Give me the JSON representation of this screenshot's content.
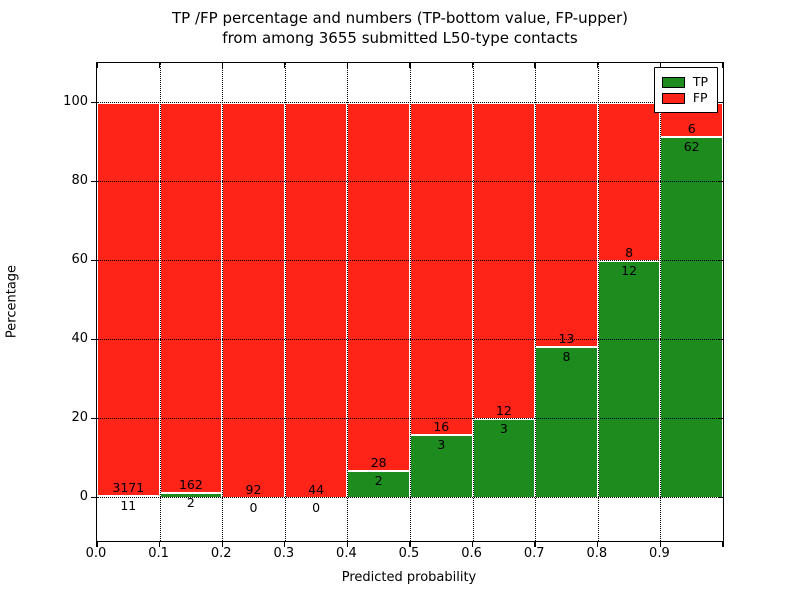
{
  "title": {
    "line1": "TP /FP percentage and numbers (TP-bottom value, FP-upper)",
    "line2": "from among 3655 submitted L50-type contacts"
  },
  "axes": {
    "xlabel": "Predicted probability",
    "ylabel": "Percentage",
    "x_tick_labels": [
      "0.0",
      "0.1",
      "0.2",
      "0.3",
      "0.4",
      "0.5",
      "0.6",
      "0.7",
      "0.8",
      "0.9"
    ],
    "y_tick_labels": [
      "0",
      "20",
      "40",
      "60",
      "80",
      "100"
    ]
  },
  "legend": {
    "items": [
      {
        "label": "TP",
        "color": "#1e8b1e"
      },
      {
        "label": "FP",
        "color": "#ff2318"
      }
    ]
  },
  "chart_data": {
    "type": "bar",
    "stacked": true,
    "title": "TP /FP percentage and numbers (TP-bottom value, FP-upper) from among 3655 submitted L50-type contacts",
    "xlabel": "Predicted probability",
    "ylabel": "Percentage",
    "xlim": [
      0.0,
      1.0
    ],
    "ylim": [
      -11,
      110
    ],
    "grid": true,
    "legend_position": "upper right",
    "tp_color": "#1e8b1e",
    "fp_color": "#ff2318",
    "y_gridlines": [
      0,
      20,
      40,
      60,
      80,
      100
    ],
    "x_gridlines": [
      0.1,
      0.2,
      0.3,
      0.4,
      0.5,
      0.6,
      0.7,
      0.8,
      0.9
    ],
    "series": [
      {
        "name": "TP",
        "values": [
          11,
          2,
          0,
          0,
          2,
          3,
          3,
          8,
          12,
          62
        ]
      },
      {
        "name": "FP",
        "values": [
          3171,
          162,
          92,
          44,
          28,
          16,
          12,
          13,
          8,
          6
        ]
      }
    ],
    "bins": [
      {
        "range": [
          0.0,
          0.1
        ],
        "tp": 11,
        "fp": 3171
      },
      {
        "range": [
          0.1,
          0.2
        ],
        "tp": 2,
        "fp": 162
      },
      {
        "range": [
          0.2,
          0.3
        ],
        "tp": 0,
        "fp": 92
      },
      {
        "range": [
          0.3,
          0.4
        ],
        "tp": 0,
        "fp": 44
      },
      {
        "range": [
          0.4,
          0.5
        ],
        "tp": 2,
        "fp": 28
      },
      {
        "range": [
          0.5,
          0.6
        ],
        "tp": 3,
        "fp": 16
      },
      {
        "range": [
          0.6,
          0.7
        ],
        "tp": 3,
        "fp": 12
      },
      {
        "range": [
          0.7,
          0.8
        ],
        "tp": 8,
        "fp": 13
      },
      {
        "range": [
          0.8,
          0.9
        ],
        "tp": 12,
        "fp": 8
      },
      {
        "range": [
          0.9,
          1.0
        ],
        "tp": 62,
        "fp": 6
      }
    ]
  }
}
